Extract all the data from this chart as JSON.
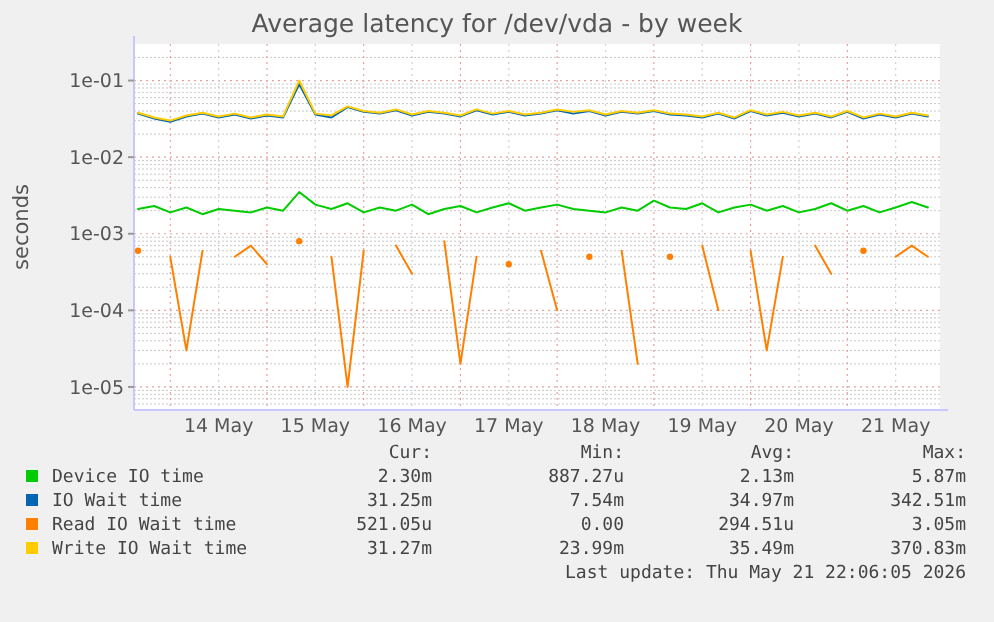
{
  "chart_data": {
    "type": "line",
    "title": "Average latency for /dev/vda - by week",
    "ylabel": "seconds",
    "log": "y",
    "grid": true,
    "legend": "bottom",
    "line_style": "solid",
    "marker": "none",
    "x": [
      "2026-05-13T16:00",
      "2026-05-13T20:00",
      "2026-05-14T00:00",
      "2026-05-14T04:00",
      "2026-05-14T08:00",
      "2026-05-14T12:00",
      "2026-05-14T16:00",
      "2026-05-14T20:00",
      "2026-05-15T00:00",
      "2026-05-15T04:00",
      "2026-05-15T08:00",
      "2026-05-15T12:00",
      "2026-05-15T16:00",
      "2026-05-15T20:00",
      "2026-05-16T00:00",
      "2026-05-16T04:00",
      "2026-05-16T08:00",
      "2026-05-16T12:00",
      "2026-05-16T16:00",
      "2026-05-16T20:00",
      "2026-05-17T00:00",
      "2026-05-17T04:00",
      "2026-05-17T08:00",
      "2026-05-17T12:00",
      "2026-05-17T16:00",
      "2026-05-17T20:00",
      "2026-05-18T00:00",
      "2026-05-18T04:00",
      "2026-05-18T08:00",
      "2026-05-18T12:00",
      "2026-05-18T16:00",
      "2026-05-18T20:00",
      "2026-05-19T00:00",
      "2026-05-19T04:00",
      "2026-05-19T08:00",
      "2026-05-19T12:00",
      "2026-05-19T16:00",
      "2026-05-19T20:00",
      "2026-05-20T00:00",
      "2026-05-20T04:00",
      "2026-05-20T08:00",
      "2026-05-20T12:00",
      "2026-05-20T16:00",
      "2026-05-20T20:00",
      "2026-05-21T00:00",
      "2026-05-21T04:00",
      "2026-05-21T08:00",
      "2026-05-21T12:00",
      "2026-05-21T16:00",
      "2026-05-21T20:00"
    ],
    "xlim": [
      "2026-05-13T15:00",
      "2026-05-21T23:00"
    ],
    "xticks": [
      {
        "value": "2026-05-14T00:00",
        "label": null
      },
      {
        "value": "2026-05-14T12:00",
        "label": "14 May"
      },
      {
        "value": "2026-05-15T00:00",
        "label": null
      },
      {
        "value": "2026-05-15T12:00",
        "label": "15 May"
      },
      {
        "value": "2026-05-16T00:00",
        "label": null
      },
      {
        "value": "2026-05-16T12:00",
        "label": "16 May"
      },
      {
        "value": "2026-05-17T00:00",
        "label": null
      },
      {
        "value": "2026-05-17T12:00",
        "label": "17 May"
      },
      {
        "value": "2026-05-18T00:00",
        "label": null
      },
      {
        "value": "2026-05-18T12:00",
        "label": "18 May"
      },
      {
        "value": "2026-05-19T00:00",
        "label": null
      },
      {
        "value": "2026-05-19T12:00",
        "label": "19 May"
      },
      {
        "value": "2026-05-20T00:00",
        "label": null
      },
      {
        "value": "2026-05-20T12:00",
        "label": "20 May"
      },
      {
        "value": "2026-05-21T00:00",
        "label": null
      },
      {
        "value": "2026-05-21T12:00",
        "label": "21 May"
      }
    ],
    "ylim": [
      5e-06,
      0.3
    ],
    "yticks": [
      {
        "value": 1e-05,
        "label": "1e-05"
      },
      {
        "value": 0.0001,
        "label": "1e-04"
      },
      {
        "value": 0.001,
        "label": "1e-03"
      },
      {
        "value": 0.01,
        "label": "1e-02"
      },
      {
        "value": 0.1,
        "label": "1e-01"
      }
    ],
    "series": [
      {
        "name": "Device IO time",
        "color": "#00cc00",
        "values": [
          0.0021,
          0.0023,
          0.0019,
          0.0022,
          0.0018,
          0.0021,
          0.002,
          0.0019,
          0.0022,
          0.002,
          0.0035,
          0.0024,
          0.0021,
          0.0025,
          0.0019,
          0.0022,
          0.002,
          0.0024,
          0.0018,
          0.0021,
          0.0023,
          0.0019,
          0.0022,
          0.0025,
          0.002,
          0.0022,
          0.0024,
          0.0021,
          0.002,
          0.0019,
          0.0022,
          0.002,
          0.0027,
          0.0022,
          0.0021,
          0.0025,
          0.0019,
          0.0022,
          0.0024,
          0.002,
          0.0023,
          0.0019,
          0.0021,
          0.0025,
          0.002,
          0.0023,
          0.0019,
          0.0022,
          0.0026,
          0.0022
        ]
      },
      {
        "name": "IO Wait time",
        "color": "#0066b3",
        "values": [
          0.037,
          0.032,
          0.029,
          0.034,
          0.037,
          0.033,
          0.036,
          0.032,
          0.035,
          0.033,
          0.09,
          0.036,
          0.033,
          0.045,
          0.039,
          0.037,
          0.041,
          0.035,
          0.039,
          0.037,
          0.034,
          0.041,
          0.036,
          0.039,
          0.035,
          0.037,
          0.041,
          0.037,
          0.04,
          0.035,
          0.039,
          0.037,
          0.04,
          0.036,
          0.035,
          0.033,
          0.037,
          0.032,
          0.04,
          0.035,
          0.038,
          0.034,
          0.037,
          0.033,
          0.039,
          0.032,
          0.036,
          0.033,
          0.037,
          0.034
        ]
      },
      {
        "name": "Read IO Wait time",
        "color": "#ff8000",
        "values": [
          0.0006,
          null,
          0.0005,
          3e-05,
          0.0006,
          null,
          0.0005,
          0.0007,
          0.0004,
          null,
          0.0008,
          null,
          0.0005,
          1e-05,
          0.0006,
          null,
          0.0007,
          0.0003,
          null,
          0.0008,
          2e-05,
          0.0005,
          null,
          0.0004,
          null,
          0.0006,
          0.0001,
          null,
          0.0005,
          null,
          0.0006,
          2e-05,
          null,
          0.0005,
          null,
          0.0007,
          0.0001,
          null,
          0.0006,
          3e-05,
          0.0005,
          null,
          0.0007,
          0.0003,
          null,
          0.0006,
          null,
          0.0005,
          0.0007,
          0.0005
        ]
      },
      {
        "name": "Write IO Wait time",
        "color": "#ffcc00",
        "values": [
          0.038,
          0.033,
          0.03,
          0.035,
          0.038,
          0.034,
          0.037,
          0.033,
          0.036,
          0.034,
          0.1,
          0.037,
          0.035,
          0.046,
          0.04,
          0.038,
          0.042,
          0.036,
          0.04,
          0.038,
          0.035,
          0.042,
          0.037,
          0.04,
          0.036,
          0.038,
          0.042,
          0.039,
          0.041,
          0.036,
          0.04,
          0.038,
          0.041,
          0.037,
          0.036,
          0.034,
          0.038,
          0.033,
          0.041,
          0.036,
          0.039,
          0.035,
          0.038,
          0.034,
          0.04,
          0.033,
          0.037,
          0.034,
          0.038,
          0.035
        ]
      }
    ],
    "annotations": [
      "Cur:",
      "Min:",
      "Avg:",
      "Max:",
      "2.30m",
      "887.27u",
      "2.13m",
      "5.87m",
      "31.25m",
      "7.54m",
      "34.97m",
      "342.51m",
      "521.05u",
      "0.00",
      "294.51u",
      "3.05m",
      "31.27m",
      "23.99m",
      "35.49m",
      "370.83m",
      "Last update: Thu May 21 22:06:05 2026"
    ]
  }
}
